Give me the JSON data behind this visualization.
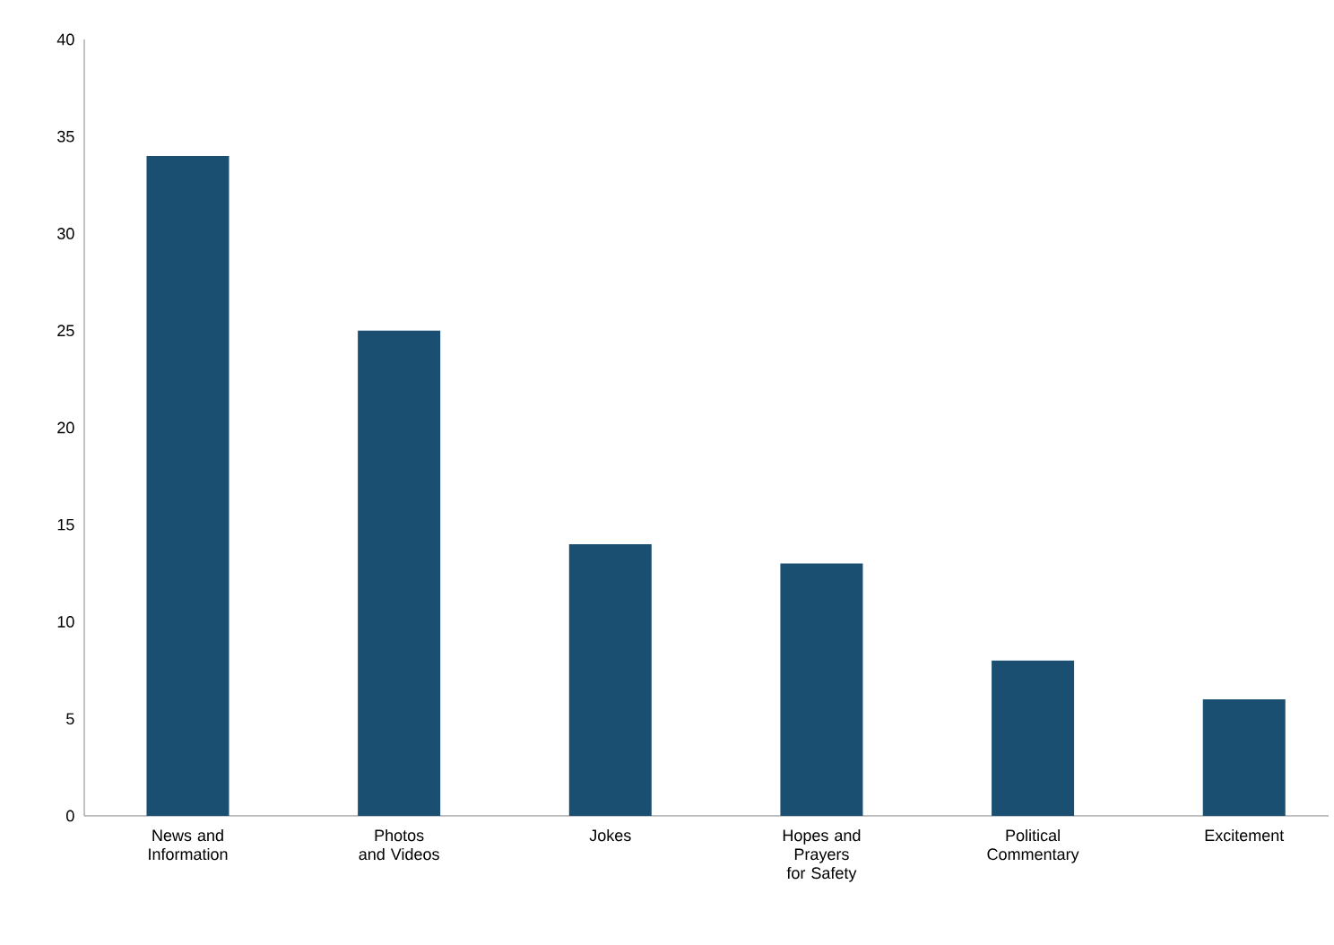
{
  "chart_data": {
    "type": "bar",
    "categories": [
      "News and Information",
      "Photos and Videos",
      "Jokes",
      "Hopes and Prayers for Safety",
      "Political Commentary",
      "Excitement"
    ],
    "values": [
      34,
      25,
      14,
      13,
      8,
      6
    ],
    "color": "#1b4f72",
    "ylim": [
      0,
      40
    ],
    "yticks": [
      0,
      5,
      10,
      15,
      20,
      25,
      30,
      35,
      40
    ],
    "grid": false
  }
}
